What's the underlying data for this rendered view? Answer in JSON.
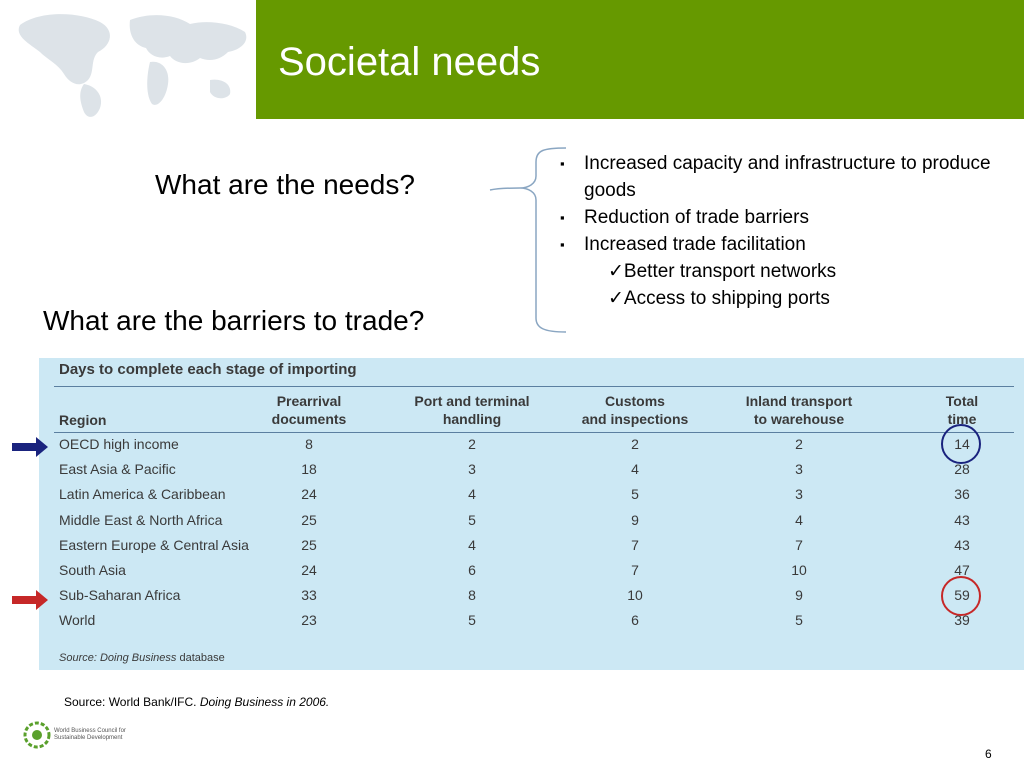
{
  "slide": {
    "title": "Societal needs",
    "question_needs": "What are the needs?",
    "question_barriers": "What are the barriers to trade?",
    "bullet_marker": "▪",
    "check_marker": "✓",
    "bullets": [
      "Increased capacity and infrastructure to produce goods",
      "Reduction of trade barriers",
      "Increased trade facilitation"
    ],
    "sub_bullets": [
      "Better transport networks",
      "Access to shipping ports"
    ],
    "footer_source_prefix": "Source: World Bank/IFC. ",
    "footer_source_italic": "Doing Business in 2006.",
    "logo_text": "World Business Council for Sustainable Development",
    "page_number": "6"
  },
  "table": {
    "title": "Days to complete each stage of importing",
    "headers": {
      "region": "Region",
      "prearrival": [
        "Prearrival",
        "documents"
      ],
      "port": [
        "Port and terminal",
        "handling"
      ],
      "customs": [
        "Customs",
        "and inspections"
      ],
      "inland": [
        "Inland transport",
        "to warehouse"
      ],
      "total": [
        "Total",
        "time"
      ]
    },
    "rows": [
      {
        "region": "OECD high income",
        "prearrival": "8",
        "port": "2",
        "customs": "2",
        "inland": "2",
        "total": "14"
      },
      {
        "region": "East Asia & Pacific",
        "prearrival": "18",
        "port": "3",
        "customs": "4",
        "inland": "3",
        "total": "28"
      },
      {
        "region": "Latin America & Caribbean",
        "prearrival": "24",
        "port": "4",
        "customs": "5",
        "inland": "3",
        "total": "36"
      },
      {
        "region": "Middle East & North Africa",
        "prearrival": "25",
        "port": "5",
        "customs": "9",
        "inland": "4",
        "total": "43"
      },
      {
        "region": "Eastern Europe & Central Asia",
        "prearrival": "25",
        "port": "4",
        "customs": "7",
        "inland": "7",
        "total": "43"
      },
      {
        "region": "South Asia",
        "prearrival": "24",
        "port": "6",
        "customs": "7",
        "inland": "10",
        "total": "47"
      },
      {
        "region": "Sub-Saharan Africa",
        "prearrival": "33",
        "port": "8",
        "customs": "10",
        "inland": "9",
        "total": "59"
      },
      {
        "region": "World",
        "prearrival": "23",
        "port": "5",
        "customs": "6",
        "inland": "5",
        "total": "39"
      }
    ],
    "source_prefix": "Source: ",
    "source_italic": "Doing Business",
    "source_suffix": " database",
    "highlight_colors": {
      "oecd": "#1a237e",
      "sub_saharan": "#c62828"
    }
  },
  "colors": {
    "title_bar": "#669900",
    "table_bg": "#cce8f4"
  }
}
